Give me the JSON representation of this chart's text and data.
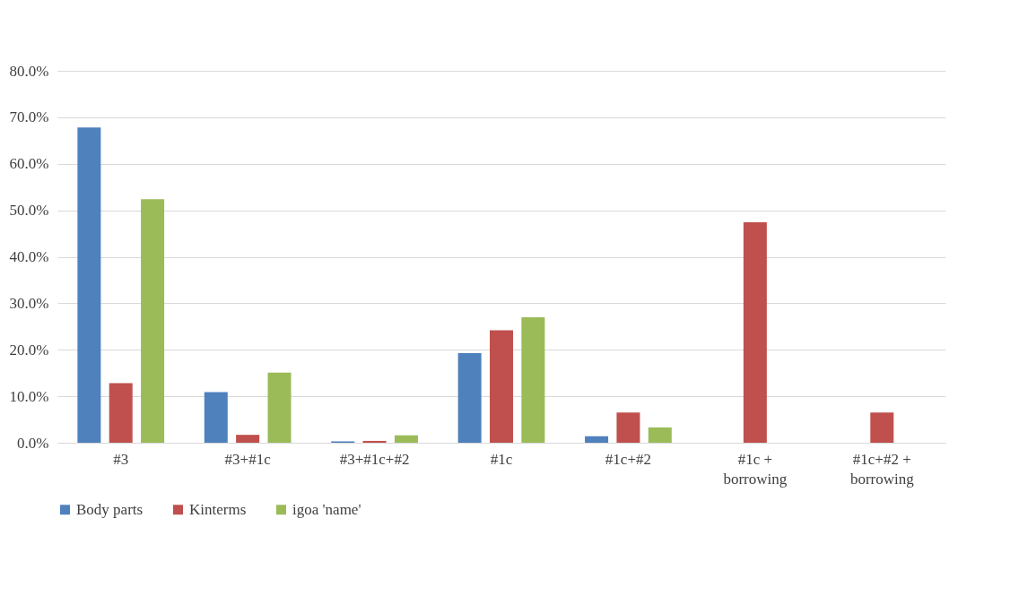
{
  "chart_data": {
    "type": "bar",
    "categories": [
      "#3",
      "#3+#1c",
      "#3+#1c+#2",
      "#1c",
      "#1c+#2",
      "#1c + borrowing",
      "#1c+#2 + borrowing"
    ],
    "series": [
      {
        "name": "Body parts",
        "color": "#4f81bd",
        "values": [
          67.8,
          10.9,
          0.3,
          19.3,
          1.4,
          null,
          null
        ]
      },
      {
        "name": "Kinterms",
        "color": "#c0504d",
        "values": [
          12.8,
          1.7,
          0.4,
          24.2,
          6.5,
          47.4,
          6.5
        ]
      },
      {
        "name": "igoa 'name'",
        "color": "#9bbb59",
        "values": [
          52.4,
          15.1,
          1.6,
          27.0,
          3.3,
          null,
          null
        ]
      }
    ],
    "ylim": [
      0,
      80
    ],
    "yticks": [
      {
        "value": 0,
        "label": "0.0%"
      },
      {
        "value": 10,
        "label": "10.0%"
      },
      {
        "value": 20,
        "label": "20.0%"
      },
      {
        "value": 30,
        "label": "30.0%"
      },
      {
        "value": 40,
        "label": "40.0%"
      },
      {
        "value": 50,
        "label": "50.0%"
      },
      {
        "value": 60,
        "label": "60.0%"
      },
      {
        "value": 70,
        "label": "70.0%"
      },
      {
        "value": 80,
        "label": "80.0%"
      }
    ],
    "grid": "y",
    "legend": "bottom"
  }
}
